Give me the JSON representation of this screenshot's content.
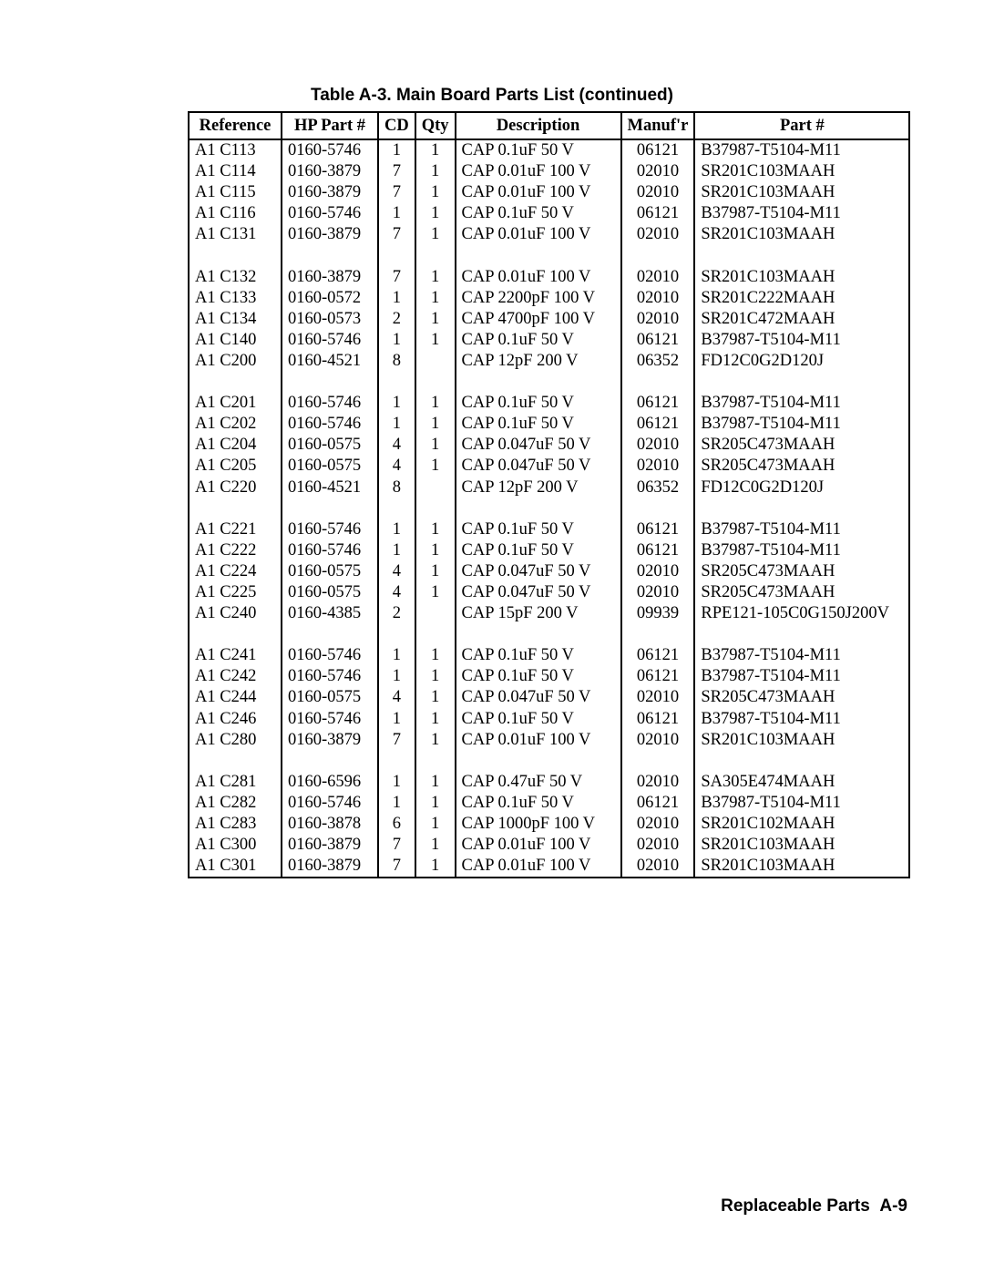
{
  "title": "Table A-3. Main Board Parts List (continued)",
  "columns": [
    "Reference",
    "HP Part #",
    "CD",
    "Qty",
    "Description",
    "Manuf'r",
    "Part #"
  ],
  "groups": [
    [
      {
        "ref": "A1 C113",
        "hp": "0160-5746",
        "cd": "1",
        "qty": "1",
        "desc": "CAP 0.1uF 50 V",
        "man": "06121",
        "part": "B37987-T5104-M11"
      },
      {
        "ref": "A1 C114",
        "hp": "0160-3879",
        "cd": "7",
        "qty": "1",
        "desc": "CAP 0.01uF 100 V",
        "man": "02010",
        "part": "SR201C103MAAH"
      },
      {
        "ref": "A1 C115",
        "hp": "0160-3879",
        "cd": "7",
        "qty": "1",
        "desc": "CAP 0.01uF 100 V",
        "man": "02010",
        "part": "SR201C103MAAH"
      },
      {
        "ref": "A1 C116",
        "hp": "0160-5746",
        "cd": "1",
        "qty": "1",
        "desc": "CAP 0.1uF 50 V",
        "man": "06121",
        "part": "B37987-T5104-M11"
      },
      {
        "ref": "A1 C131",
        "hp": "0160-3879",
        "cd": "7",
        "qty": "1",
        "desc": "CAP 0.01uF 100 V",
        "man": "02010",
        "part": "SR201C103MAAH"
      }
    ],
    [
      {
        "ref": "A1 C132",
        "hp": "0160-3879",
        "cd": "7",
        "qty": "1",
        "desc": "CAP 0.01uF 100 V",
        "man": "02010",
        "part": "SR201C103MAAH"
      },
      {
        "ref": "A1 C133",
        "hp": "0160-0572",
        "cd": "1",
        "qty": "1",
        "desc": "CAP 2200pF 100 V",
        "man": "02010",
        "part": "SR201C222MAAH"
      },
      {
        "ref": "A1 C134",
        "hp": "0160-0573",
        "cd": "2",
        "qty": "1",
        "desc": "CAP 4700pF 100 V",
        "man": "02010",
        "part": "SR201C472MAAH"
      },
      {
        "ref": "A1 C140",
        "hp": "0160-5746",
        "cd": "1",
        "qty": "1",
        "desc": "CAP 0.1uF 50 V",
        "man": "06121",
        "part": "B37987-T5104-M11"
      },
      {
        "ref": "A1 C200",
        "hp": "0160-4521",
        "cd": "8",
        "qty": "",
        "desc": "CAP 12pF 200 V",
        "man": "06352",
        "part": "FD12C0G2D120J"
      }
    ],
    [
      {
        "ref": "A1 C201",
        "hp": "0160-5746",
        "cd": "1",
        "qty": "1",
        "desc": "CAP 0.1uF 50 V",
        "man": "06121",
        "part": "B37987-T5104-M11"
      },
      {
        "ref": "A1 C202",
        "hp": "0160-5746",
        "cd": "1",
        "qty": "1",
        "desc": "CAP 0.1uF 50 V",
        "man": "06121",
        "part": "B37987-T5104-M11"
      },
      {
        "ref": "A1 C204",
        "hp": "0160-0575",
        "cd": "4",
        "qty": "1",
        "desc": "CAP 0.047uF 50 V",
        "man": "02010",
        "part": "SR205C473MAAH"
      },
      {
        "ref": "A1 C205",
        "hp": "0160-0575",
        "cd": "4",
        "qty": "1",
        "desc": "CAP 0.047uF 50 V",
        "man": "02010",
        "part": "SR205C473MAAH"
      },
      {
        "ref": "A1 C220",
        "hp": "0160-4521",
        "cd": "8",
        "qty": "",
        "desc": "CAP 12pF 200 V",
        "man": "06352",
        "part": "FD12C0G2D120J"
      }
    ],
    [
      {
        "ref": "A1 C221",
        "hp": "0160-5746",
        "cd": "1",
        "qty": "1",
        "desc": "CAP 0.1uF 50 V",
        "man": "06121",
        "part": "B37987-T5104-M11"
      },
      {
        "ref": "A1 C222",
        "hp": "0160-5746",
        "cd": "1",
        "qty": "1",
        "desc": "CAP 0.1uF 50 V",
        "man": "06121",
        "part": "B37987-T5104-M11"
      },
      {
        "ref": "A1 C224",
        "hp": "0160-0575",
        "cd": "4",
        "qty": "1",
        "desc": "CAP 0.047uF 50 V",
        "man": "02010",
        "part": "SR205C473MAAH"
      },
      {
        "ref": "A1 C225",
        "hp": "0160-0575",
        "cd": "4",
        "qty": "1",
        "desc": "CAP 0.047uF 50 V",
        "man": "02010",
        "part": "SR205C473MAAH"
      },
      {
        "ref": "A1 C240",
        "hp": "0160-4385",
        "cd": "2",
        "qty": "",
        "desc": "CAP 15pF 200 V",
        "man": "09939",
        "part": "RPE121-105C0G150J200V"
      }
    ],
    [
      {
        "ref": "A1 C241",
        "hp": "0160-5746",
        "cd": "1",
        "qty": "1",
        "desc": "CAP 0.1uF 50 V",
        "man": "06121",
        "part": "B37987-T5104-M11"
      },
      {
        "ref": "A1 C242",
        "hp": "0160-5746",
        "cd": "1",
        "qty": "1",
        "desc": "CAP 0.1uF 50 V",
        "man": "06121",
        "part": "B37987-T5104-M11"
      },
      {
        "ref": "A1 C244",
        "hp": "0160-0575",
        "cd": "4",
        "qty": "1",
        "desc": "CAP 0.047uF 50 V",
        "man": "02010",
        "part": "SR205C473MAAH"
      },
      {
        "ref": "A1 C246",
        "hp": "0160-5746",
        "cd": "1",
        "qty": "1",
        "desc": "CAP 0.1uF 50 V",
        "man": "06121",
        "part": "B37987-T5104-M11"
      },
      {
        "ref": "A1 C280",
        "hp": "0160-3879",
        "cd": "7",
        "qty": "1",
        "desc": "CAP 0.01uF 100 V",
        "man": "02010",
        "part": "SR201C103MAAH"
      }
    ],
    [
      {
        "ref": "A1 C281",
        "hp": "0160-6596",
        "cd": "1",
        "qty": "1",
        "desc": "CAP 0.47uF 50 V",
        "man": "02010",
        "part": "SA305E474MAAH"
      },
      {
        "ref": "A1 C282",
        "hp": "0160-5746",
        "cd": "1",
        "qty": "1",
        "desc": "CAP 0.1uF 50 V",
        "man": "06121",
        "part": "B37987-T5104-M11"
      },
      {
        "ref": "A1 C283",
        "hp": "0160-3878",
        "cd": "6",
        "qty": "1",
        "desc": "CAP 1000pF 100 V",
        "man": "02010",
        "part": "SR201C102MAAH"
      },
      {
        "ref": "A1 C300",
        "hp": "0160-3879",
        "cd": "7",
        "qty": "1",
        "desc": "CAP 0.01uF 100 V",
        "man": "02010",
        "part": "SR201C103MAAH"
      },
      {
        "ref": "A1 C301",
        "hp": "0160-3879",
        "cd": "7",
        "qty": "1",
        "desc": "CAP 0.01uF 100 V",
        "man": "02010",
        "part": "SR201C103MAAH"
      }
    ]
  ],
  "footer_bold": "Replaceable Parts",
  "footer_page": "A-9"
}
